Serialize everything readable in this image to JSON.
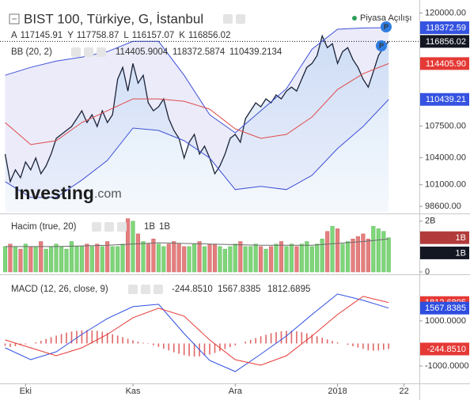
{
  "chart_data": [
    {
      "type": "line",
      "title": "BIST 100, Türkiye, G, İstanbul",
      "ohlc": [
        {
          "name": "A",
          "value": 117145.91
        },
        {
          "name": "Y",
          "value": 117758.87
        },
        {
          "name": "L",
          "value": 116157.07
        },
        {
          "name": "K",
          "value": 116856.02
        }
      ],
      "indicator": {
        "label": "BB (20, 2)",
        "values": [
          114405.9004,
          118372.5874,
          110439.2134
        ],
        "colors": [
          "#e04a4a",
          "#3e50d6",
          "#3e50d6"
        ]
      },
      "annotation": "Piyasa Açılışı",
      "markers": [
        "P",
        "P"
      ],
      "watermark": [
        "Investing",
        ".com"
      ],
      "x": [
        0,
        1,
        2,
        3,
        4,
        5,
        6,
        7,
        8,
        9,
        10,
        11,
        12,
        13,
        14,
        15,
        16,
        17,
        18,
        19,
        20,
        21,
        22,
        23,
        24,
        25,
        26,
        27,
        28,
        29,
        30,
        31,
        32,
        33,
        34,
        35,
        36,
        37,
        38,
        39,
        40,
        41,
        42,
        43,
        44,
        45,
        46,
        47,
        48,
        49,
        50,
        51,
        52,
        53,
        54,
        55,
        56,
        57,
        58,
        59,
        60,
        61,
        62,
        63,
        64,
        65,
        66,
        67,
        68,
        69,
        70,
        71,
        72,
        73,
        74,
        75
      ],
      "xlim": [
        -1,
        81
      ],
      "ylim": [
        98000,
        121000
      ],
      "yticks": [
        {
          "value": 98600,
          "label": "98600.00"
        },
        {
          "value": 101000,
          "label": "101000.00"
        },
        {
          "value": 104000,
          "label": "104000.00"
        },
        {
          "value": 107500,
          "label": "107500.00"
        },
        {
          "value": 120000,
          "label": "120000.00"
        }
      ],
      "band_fill": "rgba(110,110,220,0.14)",
      "area_color": "#cfe1f6",
      "series": [
        {
          "color": "#1a2238",
          "values": [
            104391,
            101339,
            102647,
            101775,
            103519,
            102647,
            103955,
            102211,
            103083,
            104391,
            106135,
            106571,
            107007,
            107443,
            108315,
            109187,
            107879,
            108751,
            107443,
            109187,
            107879,
            108751,
            112675,
            113983,
            111367,
            114419,
            112239,
            113111,
            110059,
            109187,
            109623,
            110495,
            108315,
            107007,
            106135,
            103955,
            105699,
            106571,
            104391,
            105263,
            103955,
            102211,
            103083,
            104391,
            106135,
            106571,
            105699,
            108315,
            109187,
            110059,
            109623,
            110495,
            110059,
            110931,
            110495,
            111367,
            111803,
            111367,
            112675,
            113983,
            114419,
            115291,
            117471,
            116163,
            116599,
            114419,
            115727,
            116163,
            114855,
            113983,
            112675,
            111800,
            113500,
            115291,
            116200,
            116856.02
          ]
        },
        {
          "color": "#3e50d6",
          "x": [
            0,
            5,
            10,
            15,
            20,
            25,
            30,
            35,
            40,
            45,
            50,
            55,
            60,
            65,
            70,
            75
          ],
          "values": [
            113111,
            113983,
            114681,
            115117,
            115727,
            116861,
            116861,
            113111,
            108751,
            106746,
            109187,
            111629,
            116000,
            118200,
            118343,
            118372.5874
          ]
        },
        {
          "color": "#e04a4a",
          "x": [
            0,
            5,
            10,
            15,
            20,
            25,
            30,
            35,
            40,
            45,
            50,
            55,
            60,
            65,
            70,
            75
          ],
          "values": [
            107879,
            105438,
            105874,
            107879,
            109187,
            110495,
            110495,
            110234,
            109362,
            107182,
            106135,
            106571,
            108490,
            111542,
            113286,
            114405.9004
          ]
        },
        {
          "color": "#3e50d6",
          "x": [
            0,
            5,
            10,
            15,
            20,
            25,
            30,
            35,
            40,
            45,
            50,
            55,
            60,
            65,
            70,
            75
          ],
          "values": [
            101339,
            99595,
            99595,
            101514,
            103694,
            107269,
            107007,
            105874,
            103955,
            100467,
            100816,
            100467,
            102037,
            105002,
            107443,
            110439.2134
          ]
        }
      ],
      "price_labels": [
        {
          "value": 118372.59,
          "label": "118372.59",
          "color": "#3553e0"
        },
        {
          "value": 116856.02,
          "label": "116856.02",
          "color": "#131722"
        },
        {
          "value": 114405.9,
          "label": "114405.90",
          "color": "#e53935"
        },
        {
          "value": 110439.21,
          "label": "110439.21",
          "color": "#3553e0"
        }
      ]
    },
    {
      "type": "bar",
      "title": "Hacim (true, 20)",
      "x": [
        0,
        1,
        2,
        3,
        4,
        5,
        6,
        7,
        8,
        9,
        10,
        11,
        12,
        13,
        14,
        15,
        16,
        17,
        18,
        19,
        20,
        21,
        22,
        23,
        24,
        25,
        26,
        27,
        28,
        29,
        30,
        31,
        32,
        33,
        34,
        35,
        36,
        37,
        38,
        39,
        40,
        41,
        42,
        43,
        44,
        45,
        46,
        47,
        48,
        49,
        50,
        51,
        52,
        53,
        54,
        55,
        56,
        57,
        58,
        59,
        60,
        61,
        62,
        63,
        64,
        65,
        66,
        67,
        68,
        69,
        70,
        71,
        72,
        73,
        74,
        75
      ],
      "xlim": [
        -1,
        81
      ],
      "ylim": [
        0,
        2.15
      ],
      "yticks": [
        0,
        {
          "value": 2,
          "label": "2B"
        }
      ],
      "up_color": "#7fd67a",
      "down_color": "#e57f7f",
      "series": [
        {
          "type": "bar",
          "values": [
            1.0,
            1.1,
            1.0,
            0.9,
            1.1,
            1.0,
            1.0,
            1.2,
            0.9,
            1.0,
            1.1,
            1.0,
            0.9,
            1.2,
            1.0,
            1.0,
            1.1,
            1.0,
            1.1,
            1.0,
            1.2,
            1.0,
            1.0,
            1.1,
            2.1,
            2.0,
            1.5,
            1.2,
            1.1,
            1.3,
            1.1,
            1.0,
            1.1,
            1.2,
            1.1,
            1.0,
            1.0,
            1.1,
            1.2,
            1.0,
            1.1,
            1.1,
            1.0,
            0.9,
            1.0,
            1.1,
            1.2,
            1.0,
            1.0,
            1.1,
            1.0,
            0.9,
            1.0,
            1.1,
            1.2,
            1.0,
            1.1,
            1.0,
            1.1,
            1.2,
            1.0,
            1.1,
            1.3,
            1.6,
            1.8,
            1.7,
            1.1,
            1.2,
            1.3,
            1.4,
            1.5,
            1.3,
            1.8,
            1.7,
            1.6,
            1.35
          ]
        },
        {
          "type": "line",
          "color": "#6b6b6b",
          "x": [
            0,
            10,
            20,
            30,
            40,
            50,
            60,
            70,
            75
          ],
          "values": [
            1.0,
            1.0,
            1.05,
            1.15,
            1.1,
            1.05,
            1.05,
            1.2,
            1.3
          ]
        }
      ],
      "price_labels": [
        {
          "value": 1.35,
          "label": "1B",
          "color": "#b23a3a"
        },
        {
          "value": 0.75,
          "label": "1B",
          "color": "#131722"
        }
      ]
    },
    {
      "type": "bar",
      "title": "MACD (12, 26, close, 9)",
      "x": [
        0,
        1,
        2,
        3,
        4,
        5,
        6,
        7,
        8,
        9,
        10,
        11,
        12,
        13,
        14,
        15,
        16,
        17,
        18,
        19,
        20,
        21,
        22,
        23,
        24,
        25,
        26,
        27,
        28,
        29,
        30,
        31,
        32,
        33,
        34,
        35,
        36,
        37,
        38,
        39,
        40,
        41,
        42,
        43,
        44,
        45,
        46,
        47,
        48,
        49,
        50,
        51,
        52,
        53,
        54,
        55,
        56,
        57,
        58,
        59,
        60,
        61,
        62,
        63,
        64,
        65,
        66,
        67,
        68,
        69,
        70,
        71,
        72,
        73,
        74,
        75
      ],
      "xlim": [
        -1,
        81
      ],
      "xticks": [
        {
          "value": 4,
          "label": "Eki"
        },
        {
          "value": 25,
          "label": "Kas"
        },
        {
          "value": 45,
          "label": "Ara"
        },
        {
          "value": 65,
          "label": "2018"
        },
        {
          "value": 78,
          "label": "22"
        }
      ],
      "ylim": [
        -1770,
        2960
      ],
      "yticks": [
        {
          "value": -1000,
          "label": "-1000.0000"
        },
        {
          "value": 1000,
          "label": "1000.0000"
        }
      ],
      "series": [
        {
          "type": "bar",
          "color": "#e06666",
          "values": [
            -100,
            -150,
            -120,
            -80,
            -40,
            0,
            50,
            120,
            200,
            280,
            350,
            420,
            480,
            530,
            560,
            580,
            590,
            580,
            560,
            520,
            470,
            410,
            350,
            280,
            210,
            140,
            80,
            30,
            -20,
            -80,
            -150,
            -230,
            -310,
            -390,
            -460,
            -520,
            -560,
            -580,
            -570,
            -540,
            -490,
            -420,
            -340,
            -250,
            -160,
            -80,
            0,
            80,
            160,
            240,
            320,
            390,
            450,
            500,
            540,
            560,
            560,
            540,
            500,
            450,
            390,
            320,
            250,
            180,
            110,
            50,
            0,
            -60,
            -120,
            -180,
            -240,
            -300,
            -320,
            -310,
            -280,
            -244.851
          ]
        },
        {
          "type": "line",
          "color": "#2f4ee0",
          "x": [
            0,
            5,
            10,
            15,
            20,
            25,
            30,
            35,
            40,
            45,
            50,
            55,
            60,
            65,
            70,
            75
          ],
          "values": [
            -193,
            -719,
            -368,
            404,
            1105,
            1632,
            1737,
            439,
            -754,
            -1246,
            -474,
            333,
            1281,
            2193,
            1912,
            1567.8385
          ]
        },
        {
          "type": "line",
          "color": "#e53935",
          "x": [
            0,
            5,
            10,
            15,
            20,
            25,
            30,
            35,
            40,
            45,
            50,
            55,
            60,
            65,
            70,
            75
          ],
          "values": [
            158,
            -193,
            -544,
            -193,
            404,
            1140,
            1561,
            1211,
            158,
            -719,
            -965,
            -544,
            333,
            1281,
            2088,
            1812.6895
          ]
        }
      ],
      "price_labels": [
        {
          "value": 1812.6895,
          "label": "1812.6895",
          "color": "#e53935"
        },
        {
          "value": 1567.8385,
          "label": "1567.8385",
          "color": "#2f4ee0"
        },
        {
          "value": -244.851,
          "label": "-244.8510",
          "color": "#e53935"
        }
      ]
    }
  ]
}
